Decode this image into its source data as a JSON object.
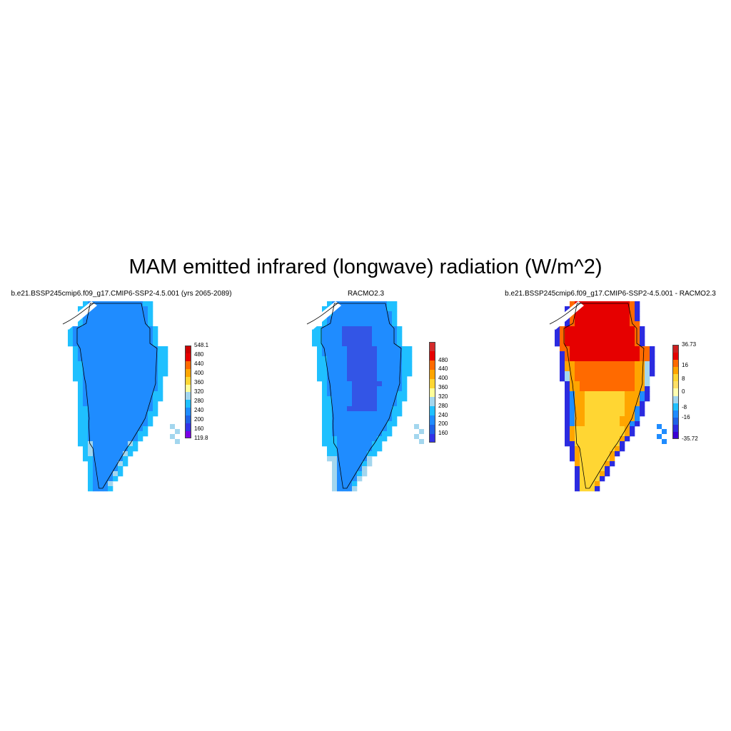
{
  "figure": {
    "title": "MAM emitted infrared (longwave) radiation (W/m^2)"
  },
  "panels": [
    {
      "title": "b.e21.BSSP245cmip6.f09_g17.CMIP6-SSP2-4.5.001 (yrs 2065-2089)",
      "colorbar": {
        "colors": [
          "#7a00e6",
          "#3333e6",
          "#1f62e6",
          "#1f8cff",
          "#1fc0ff",
          "#a3d6ee",
          "#ffff99",
          "#ffd633",
          "#ffa500",
          "#ff6a00",
          "#e60000",
          "#cc0000"
        ],
        "labels": [
          "119.8",
          "160",
          "200",
          "240",
          "280",
          "320",
          "360",
          "400",
          "440",
          "480",
          "548.1"
        ]
      }
    },
    {
      "title": "RACMO2.3",
      "colorbar": {
        "colors": [
          "#3333e6",
          "#1f62e6",
          "#1f8cff",
          "#1fc0ff",
          "#a3d6ee",
          "#ffff99",
          "#ffd633",
          "#ffa500",
          "#ff6a00",
          "#e60000",
          "#d42b2b"
        ],
        "labels": [
          "160",
          "200",
          "240",
          "280",
          "320",
          "360",
          "400",
          "440",
          "480"
        ]
      }
    },
    {
      "title": "b.e21.BSSP245cmip6.f09_g17.CMIP6-SSP2-4.5.001 - RACMO2.3",
      "colorbar": {
        "colors": [
          "#3a00d4",
          "#2b2be0",
          "#1f62e6",
          "#1f8cff",
          "#1fc0ff",
          "#a3d6ee",
          "#ffffb0",
          "#ffe066",
          "#ffd633",
          "#ffa500",
          "#ff6a00",
          "#e60000",
          "#cc1f1f"
        ],
        "labels": [
          "-35.72",
          "-16",
          "-8",
          "0",
          "8",
          "16",
          "36.73"
        ]
      }
    }
  ],
  "style_colors": {
    "pattern_1": [
      "#1f8cff",
      "#1fc0ff",
      "#a3d6ee"
    ],
    "pattern_2": [
      "#3355e6",
      "#1f8cff",
      "#1fc0ff",
      "#a3d6ee",
      "#ffff99"
    ],
    "pattern_3": [
      "#e60000",
      "#ff6a00",
      "#ffa500",
      "#ffd633",
      "#a3d6ee",
      "#1f8cff",
      "#2b2be0"
    ]
  }
}
